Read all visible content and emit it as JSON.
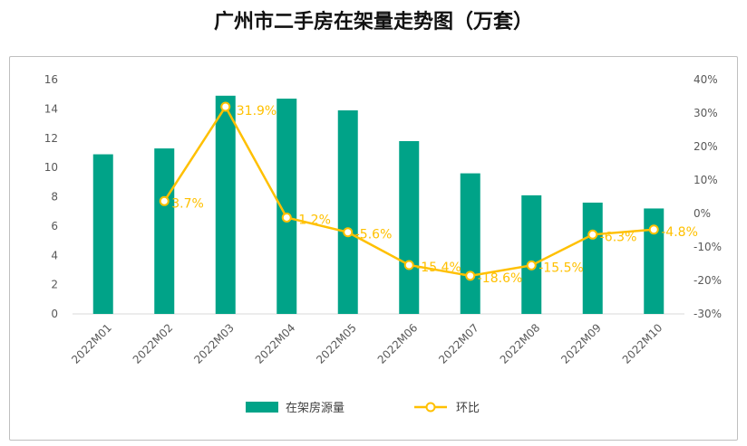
{
  "chart_data": {
    "type": "bar",
    "title": "广州市二手房在架量走势图（万套）",
    "categories": [
      "2022M01",
      "2022M02",
      "2022M03",
      "2022M04",
      "2022M05",
      "2022M06",
      "2022M07",
      "2022M08",
      "2022M09",
      "2022M10"
    ],
    "series": [
      {
        "name": "在架房源量",
        "type": "bar",
        "axis": "left",
        "color": "#00a388",
        "values": [
          10.9,
          11.3,
          14.9,
          14.7,
          13.9,
          11.8,
          9.6,
          8.1,
          7.6,
          7.2
        ]
      },
      {
        "name": "环比",
        "type": "line",
        "axis": "right",
        "color": "#ffc000",
        "values": [
          null,
          3.7,
          31.9,
          -1.2,
          -5.6,
          -15.4,
          -18.6,
          -15.5,
          -6.3,
          -4.8
        ],
        "labels": [
          "",
          "3.7%",
          "31.9%",
          "-1.2%",
          "-5.6%",
          "-15.4%",
          "-18.6%",
          "-15.5%",
          "-6.3%",
          "-4.8%"
        ]
      }
    ],
    "y_left": {
      "min": 0,
      "max": 16,
      "step": 2,
      "ticks": [
        "0",
        "2",
        "4",
        "6",
        "8",
        "10",
        "12",
        "14",
        "16"
      ]
    },
    "y_right": {
      "min": -30,
      "max": 40,
      "step": 10,
      "ticks": [
        "-30%",
        "-20%",
        "-10%",
        "0%",
        "10%",
        "20%",
        "30%",
        "40%"
      ]
    },
    "grid": false,
    "legend_position": "bottom"
  }
}
